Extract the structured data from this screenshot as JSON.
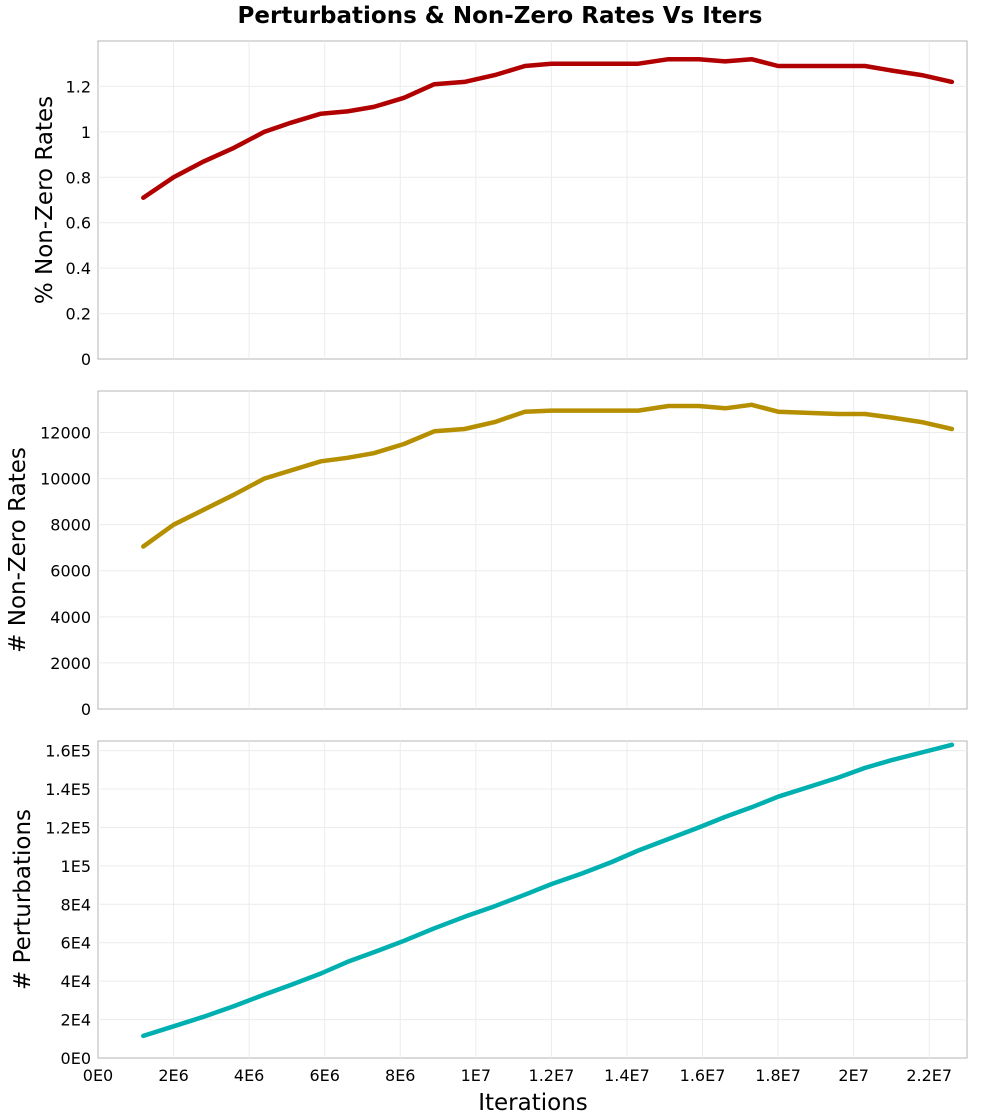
{
  "chart_data": {
    "title": "Perturbations & Non-Zero Rates Vs Iters",
    "type": "line",
    "xlabel": "Iterations",
    "xlim": [
      0,
      23000000
    ],
    "x_ticks": [
      0,
      2000000,
      4000000,
      6000000,
      8000000,
      10000000,
      12000000,
      14000000,
      16000000,
      18000000,
      20000000,
      22000000
    ],
    "x_tick_labels": [
      "0E0",
      "2E6",
      "4E6",
      "6E6",
      "8E6",
      "1E7",
      "1.2E7",
      "1.4E7",
      "1.6E7",
      "1.8E7",
      "2E7",
      "2.2E7"
    ],
    "x": [
      1200000,
      2000000,
      2800000,
      3600000,
      4400000,
      5100000,
      5900000,
      6600000,
      7300000,
      8100000,
      8900000,
      9700000,
      10500000,
      11300000,
      12000000,
      12800000,
      13600000,
      14300000,
      15100000,
      15900000,
      16600000,
      17300000,
      18000000,
      18800000,
      19600000,
      20300000,
      21000000,
      21800000,
      22600000
    ],
    "grid": true,
    "legend": "none",
    "panels": [
      {
        "ylabel": "% Non-Zero Rates",
        "ylim": [
          0,
          1.4
        ],
        "y_ticks": [
          0,
          0.2,
          0.4,
          0.6,
          0.8,
          1,
          1.2
        ],
        "y_tick_labels": [
          "0",
          "0.2",
          "0.4",
          "0.6",
          "0.8",
          "1",
          "1.2"
        ],
        "color": "#b00000",
        "values": [
          0.71,
          0.8,
          0.87,
          0.93,
          1.0,
          1.04,
          1.08,
          1.09,
          1.11,
          1.15,
          1.21,
          1.22,
          1.25,
          1.29,
          1.3,
          1.3,
          1.3,
          1.3,
          1.32,
          1.32,
          1.31,
          1.32,
          1.29,
          1.29,
          1.29,
          1.29,
          1.27,
          1.25,
          1.22
        ]
      },
      {
        "ylabel": "# Non-Zero Rates",
        "ylim": [
          0,
          13800
        ],
        "y_ticks": [
          0,
          2000,
          4000,
          6000,
          8000,
          10000,
          12000
        ],
        "y_tick_labels": [
          "0",
          "2000",
          "4000",
          "6000",
          "8000",
          "10000",
          "12000"
        ],
        "color": "#b58f00",
        "values": [
          7050,
          8000,
          8650,
          9300,
          10000,
          10350,
          10750,
          10900,
          11100,
          11500,
          12050,
          12150,
          12450,
          12900,
          12950,
          12950,
          12950,
          12950,
          13150,
          13150,
          13050,
          13200,
          12900,
          12850,
          12800,
          12800,
          12650,
          12450,
          12150
        ]
      },
      {
        "ylabel": "# Perturbations",
        "ylim": [
          0,
          165000
        ],
        "y_ticks": [
          0,
          20000,
          40000,
          60000,
          80000,
          100000,
          120000,
          140000,
          160000
        ],
        "y_tick_labels": [
          "0E0",
          "2E4",
          "4E4",
          "6E4",
          "8E4",
          "1E5",
          "1.2E5",
          "1.4E5",
          "1.6E5"
        ],
        "color": "#00b0b0",
        "values": [
          11500,
          16500,
          21500,
          27000,
          33000,
          38000,
          44000,
          50000,
          55000,
          61000,
          67500,
          73500,
          79000,
          85000,
          90500,
          96000,
          102000,
          108000,
          114000,
          120000,
          125500,
          130500,
          136000,
          141000,
          146000,
          151000,
          155000,
          159000,
          163000
        ]
      }
    ]
  }
}
